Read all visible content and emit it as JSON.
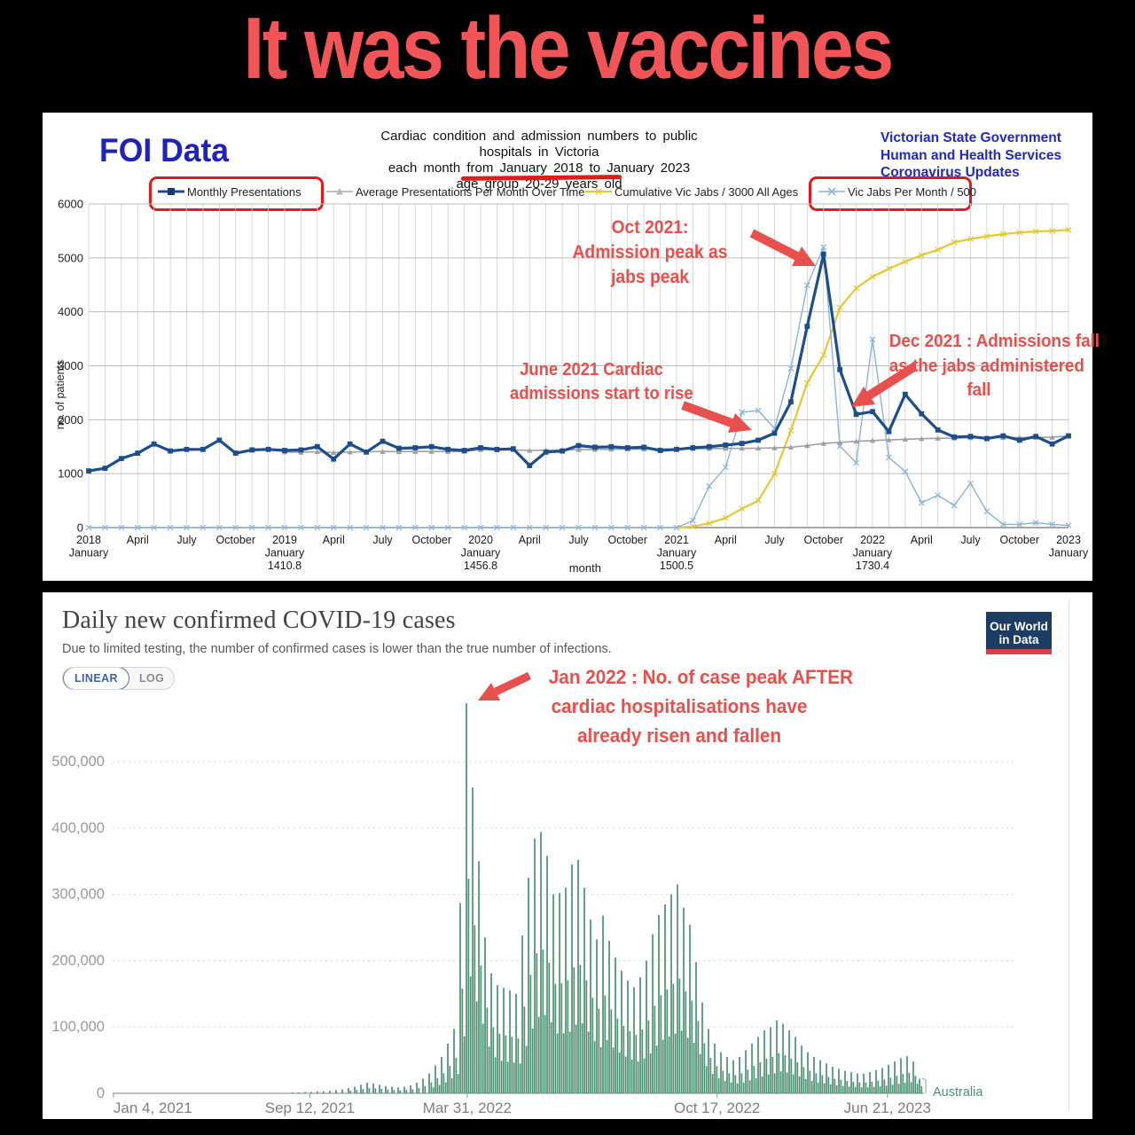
{
  "meme_title": "It was the vaccines",
  "colors": {
    "meme_red": "#f25558",
    "annotation_red": "#e8504d",
    "highlight_box_red": "#db1d1d",
    "monthly_line": "#1d4e8c",
    "average_line": "#a0a0a0",
    "cumulative_line": "#e6c832",
    "jabs_line": "#8cb3d9",
    "owid_bar_green": "#4d9172",
    "owid_navy": "#1c3d63",
    "owid_red": "#d7414e",
    "linear_blue": "#3c64a4"
  },
  "top_chart": {
    "source_label": "FOI Data",
    "title_line1": "Cardiac condition and admission numbers to public hospitals in Victoria",
    "title_line2": "each month from January 2018 to January 2023",
    "title_line3": "age group 20-29 years old",
    "gov_line1": "Victorian State Government",
    "gov_line2": "Human and Health Services",
    "gov_line3": "Coronavirus Updates",
    "legend": [
      {
        "label": "Monthly Presentations",
        "highlighted": true
      },
      {
        "label": "Average Presentations Per Month Over Time",
        "highlighted": false
      },
      {
        "label": "Cumulative Vic Jabs / 3000 All Ages",
        "highlighted": false
      },
      {
        "label": "Vic Jabs Per Month / 500",
        "highlighted": true
      }
    ],
    "annotations": [
      {
        "lines": [
          "Oct 2021:",
          "Admission peak as",
          "jabs peak"
        ]
      },
      {
        "lines": [
          "June 2021 Cardiac",
          "admissions start to rise"
        ]
      },
      {
        "lines": [
          "Dec 2021 : Admissions fall",
          "as the jabs administered",
          "fall"
        ]
      }
    ],
    "chart_data": {
      "type": "line",
      "xlabel": "month",
      "ylabel": "no. of patients",
      "ylim": [
        0,
        6000
      ],
      "y_ticks": [
        0,
        1000,
        2000,
        3000,
        4000,
        5000,
        6000
      ],
      "x_months": "Jan 2018 - Jan 2023 (61 monthly points)",
      "x_ticks": [
        {
          "m": 0,
          "lines": [
            "2018",
            "January"
          ]
        },
        {
          "m": 3,
          "lines": [
            "April"
          ]
        },
        {
          "m": 6,
          "lines": [
            "July"
          ]
        },
        {
          "m": 9,
          "lines": [
            "October"
          ]
        },
        {
          "m": 12,
          "lines": [
            "2019",
            "January",
            "1410.8"
          ]
        },
        {
          "m": 15,
          "lines": [
            "April"
          ]
        },
        {
          "m": 18,
          "lines": [
            "July"
          ]
        },
        {
          "m": 21,
          "lines": [
            "October"
          ]
        },
        {
          "m": 24,
          "lines": [
            "2020",
            "January",
            "1456.8"
          ]
        },
        {
          "m": 27,
          "lines": [
            "April"
          ]
        },
        {
          "m": 30,
          "lines": [
            "July"
          ]
        },
        {
          "m": 33,
          "lines": [
            "October"
          ]
        },
        {
          "m": 36,
          "lines": [
            "2021",
            "January",
            "1500.5"
          ]
        },
        {
          "m": 39,
          "lines": [
            "April"
          ]
        },
        {
          "m": 42,
          "lines": [
            "July"
          ]
        },
        {
          "m": 45,
          "lines": [
            "October"
          ]
        },
        {
          "m": 48,
          "lines": [
            "2022",
            "January",
            "1730.4"
          ]
        },
        {
          "m": 51,
          "lines": [
            "April"
          ]
        },
        {
          "m": 54,
          "lines": [
            "July"
          ]
        },
        {
          "m": 57,
          "lines": [
            "October"
          ]
        },
        {
          "m": 60,
          "lines": [
            "2023",
            "January"
          ]
        }
      ],
      "year_averages": {
        "2019": 1410.8,
        "2020": 1456.8,
        "2021": 1500.5,
        "2022": 1730.4
      },
      "series": [
        {
          "name": "Cumulative Vic Jabs / 3000 All Ages",
          "color": "#e6c832",
          "width": 2.2,
          "marker": "cross",
          "values": [
            null,
            null,
            null,
            null,
            null,
            null,
            null,
            null,
            null,
            null,
            null,
            null,
            null,
            null,
            null,
            null,
            null,
            null,
            null,
            null,
            null,
            null,
            null,
            null,
            null,
            null,
            null,
            null,
            null,
            null,
            null,
            null,
            null,
            null,
            null,
            null,
            0,
            20,
            80,
            180,
            350,
            500,
            1000,
            1800,
            2680,
            3200,
            4080,
            4440,
            4650,
            4800,
            4930,
            5050,
            5150,
            5290,
            5350,
            5400,
            5440,
            5470,
            5490,
            5500,
            5520
          ]
        },
        {
          "name": "Vic Jabs Per Month / 500",
          "color": "#8cb3d9",
          "width": 1.4,
          "marker": "cross",
          "values": [
            0,
            0,
            0,
            0,
            0,
            0,
            0,
            0,
            0,
            0,
            0,
            0,
            0,
            0,
            0,
            0,
            0,
            0,
            0,
            0,
            0,
            0,
            0,
            0,
            0,
            0,
            0,
            0,
            0,
            0,
            0,
            0,
            0,
            0,
            0,
            0,
            0,
            130,
            770,
            1120,
            2140,
            2170,
            1840,
            2950,
            4490,
            5200,
            1510,
            1200,
            3490,
            1300,
            1040,
            460,
            600,
            410,
            820,
            300,
            60,
            60,
            90,
            60,
            40
          ]
        },
        {
          "name": "Average Presentations Per Month Over Time",
          "color": "#a0a0a0",
          "width": 1.6,
          "marker": "triangle",
          "values": [
            null,
            null,
            null,
            null,
            null,
            null,
            null,
            null,
            null,
            null,
            null,
            null,
            1400,
            1395,
            1405,
            1390,
            1400,
            1405,
            1410,
            1408,
            1410,
            1412,
            1410,
            1411,
            1445,
            1440,
            1442,
            1430,
            1435,
            1438,
            1445,
            1448,
            1452,
            1455,
            1456,
            1457,
            1460,
            1462,
            1465,
            1468,
            1470,
            1472,
            1478,
            1490,
            1520,
            1560,
            1580,
            1600,
            1615,
            1625,
            1638,
            1648,
            1655,
            1660,
            1663,
            1666,
            1668,
            1670,
            1672,
            1675,
            1700
          ]
        },
        {
          "name": "Monthly Presentations",
          "color": "#1d4e8c",
          "width": 3.2,
          "marker": "square",
          "values": [
            1050,
            1100,
            1280,
            1380,
            1550,
            1420,
            1450,
            1450,
            1620,
            1380,
            1440,
            1450,
            1430,
            1440,
            1500,
            1270,
            1550,
            1400,
            1600,
            1470,
            1480,
            1500,
            1450,
            1430,
            1480,
            1450,
            1460,
            1150,
            1400,
            1420,
            1520,
            1490,
            1500,
            1480,
            1490,
            1430,
            1450,
            1480,
            1500,
            1530,
            1560,
            1620,
            1750,
            2330,
            3730,
            5070,
            2930,
            2100,
            2150,
            1780,
            2470,
            2110,
            1810,
            1680,
            1690,
            1650,
            1700,
            1620,
            1690,
            1550,
            1700
          ]
        }
      ]
    }
  },
  "bottom_chart": {
    "title": "Daily new confirmed COVID-19 cases",
    "subtitle": "Due to limited testing, the number of confirmed cases is lower than the true number of infections.",
    "buttons": {
      "linear": "LINEAR",
      "log": "LOG"
    },
    "logo_line1": "Our World",
    "logo_line2": "in Data",
    "entity_label": "Australia",
    "annotation": {
      "lines": [
        "Jan 2022 : No. of case peak AFTER",
        "cardiac hospitalisations have",
        "already risen and fallen"
      ]
    },
    "chart_data": {
      "type": "bar",
      "title": "Daily new confirmed COVID-19 cases",
      "ylabel": "",
      "ylim": [
        0,
        588000
      ],
      "y_ticks": [
        {
          "v": 0,
          "label": "0"
        },
        {
          "v": 100,
          "label": "100,000"
        },
        {
          "v": 200,
          "label": "200,000"
        },
        {
          "v": 300,
          "label": "300,000"
        },
        {
          "v": 400,
          "label": "400,000"
        },
        {
          "v": 500,
          "label": "500,000"
        }
      ],
      "x_ticks": [
        {
          "label": "Jan 4, 2021",
          "f": 0.001,
          "align": "start"
        },
        {
          "label": "Sep 12, 2021",
          "f": 0.243,
          "align": "middle"
        },
        {
          "label": "Mar 31, 2022",
          "f": 0.437,
          "align": "middle"
        },
        {
          "label": "Oct 17, 2022",
          "f": 0.745,
          "align": "middle"
        },
        {
          "label": "Jun 21, 2023",
          "f": 0.955,
          "align": "middle"
        }
      ],
      "grid": "dotted-horizontal",
      "bar_values_unit": "thousands of cases (weekly spike envelope)",
      "bars": {
        "f0": 0.2219,
        "df": 0.00765,
        "values": [
          1,
          1,
          2,
          2,
          3,
          3,
          4,
          5,
          6,
          8,
          10,
          13,
          16,
          15,
          13,
          11,
          10,
          9,
          10,
          12,
          16,
          22,
          30,
          42,
          55,
          75,
          97,
          287,
          588,
          461,
          350,
          235,
          181,
          163,
          159,
          155,
          150,
          238,
          325,
          384,
          394,
          358,
          300,
          302,
          310,
          345,
          352,
          310,
          262,
          232,
          268,
          230,
          205,
          185,
          170,
          160,
          175,
          200,
          240,
          269,
          285,
          300,
          315,
          280,
          254,
          198,
          137,
          97,
          75,
          62,
          55,
          50,
          55,
          65,
          75,
          85,
          95,
          100,
          110,
          105,
          95,
          85,
          72,
          62,
          55,
          50,
          45,
          40,
          37,
          34,
          32,
          30,
          30,
          32,
          35,
          38,
          43,
          48,
          53,
          56,
          48,
          22
        ]
      }
    }
  }
}
